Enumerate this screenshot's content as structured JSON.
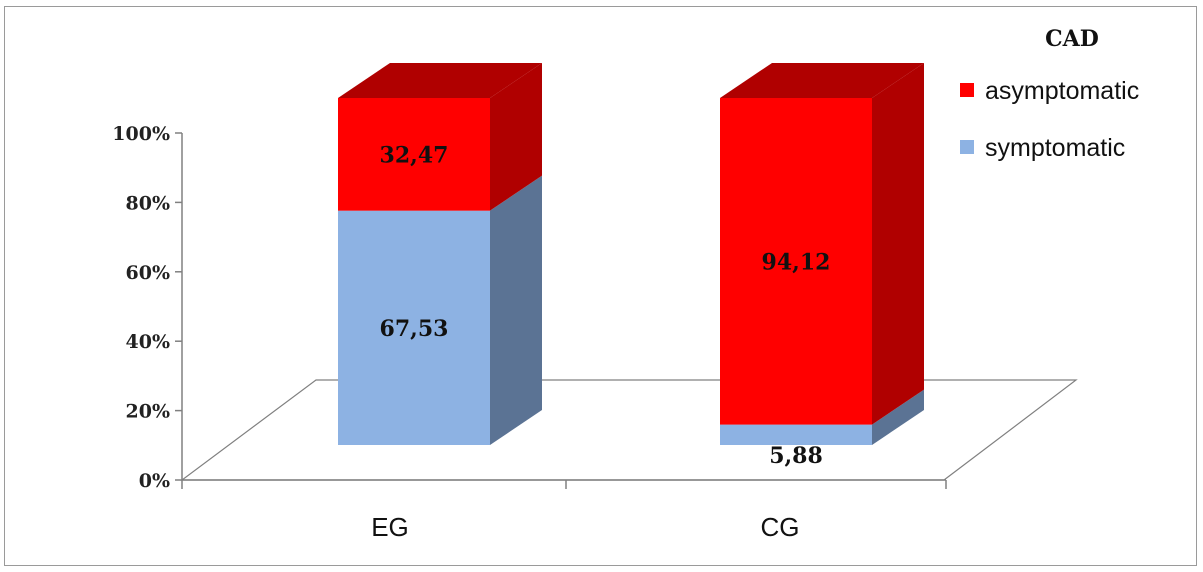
{
  "chart_data": {
    "type": "bar",
    "stacked": true,
    "three_d": true,
    "categories": [
      "EG",
      "CG"
    ],
    "series": [
      {
        "name": "symptomatic",
        "values": [
          67.53,
          5.88
        ],
        "color": "#8DB2E3",
        "side_color": "#5B7394"
      },
      {
        "name": "asymptomatic",
        "values": [
          32.47,
          94.12
        ],
        "color": "#FF0000",
        "side_color": "#B00000"
      }
    ],
    "data_labels": [
      [
        "67,53",
        "5,88"
      ],
      [
        "32,47",
        "94,12"
      ]
    ],
    "legend": {
      "title": "CAD",
      "position": "top-right",
      "entries": [
        "asymptomatic",
        "symptomatic"
      ]
    },
    "ylim": [
      0,
      100
    ],
    "y_ticks": [
      "0%",
      "20%",
      "40%",
      "60%",
      "80%",
      "100%"
    ],
    "xlabel": "",
    "ylabel": "",
    "grid": false
  }
}
